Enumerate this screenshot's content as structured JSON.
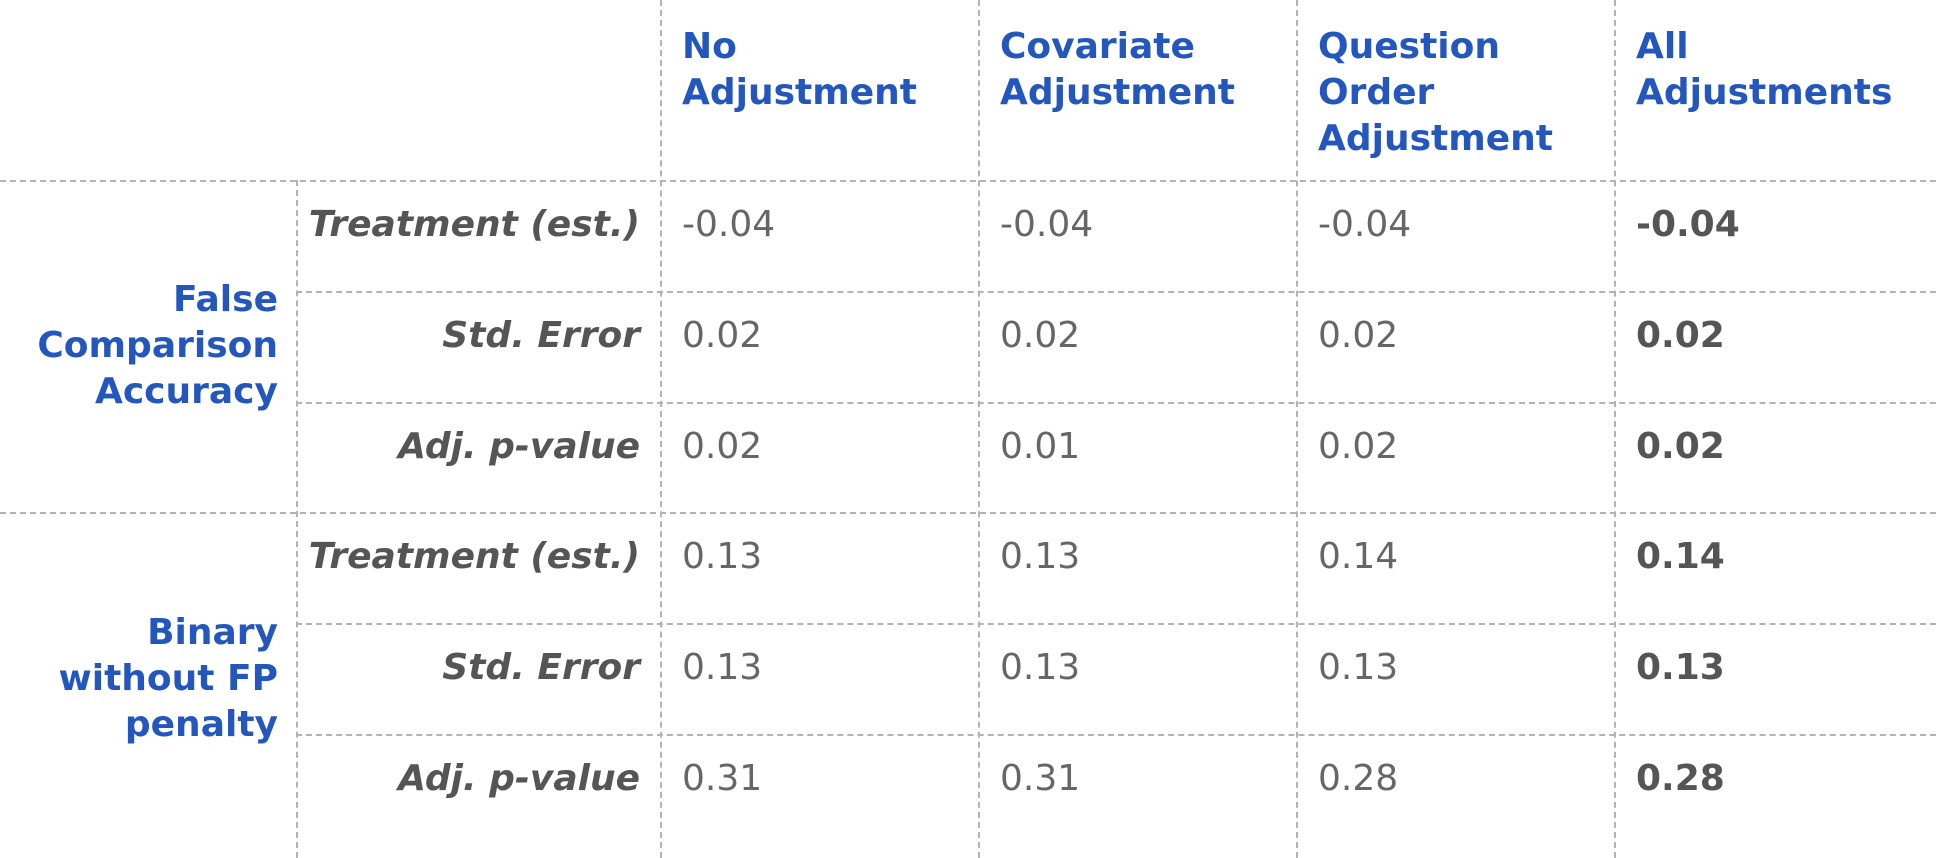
{
  "columns": [
    {
      "label": "No\nAdjustment"
    },
    {
      "label": "Covariate\nAdjustment"
    },
    {
      "label": "Question\nOrder\nAdjustment"
    },
    {
      "label": "All\nAdjustments"
    }
  ],
  "groups": [
    {
      "label": "False\nComparison\nAccuracy",
      "rows": [
        {
          "label": "Treatment (est.)",
          "values": [
            "-0.04",
            "-0.04",
            "-0.04",
            "-0.04"
          ]
        },
        {
          "label": "Std. Error",
          "values": [
            "0.02",
            "0.02",
            "0.02",
            "0.02"
          ]
        },
        {
          "label": "Adj. p-value",
          "values": [
            "0.02",
            "0.01",
            "0.02",
            "0.02"
          ]
        }
      ]
    },
    {
      "label": "Binary\nwithout FP\npenalty",
      "rows": [
        {
          "label": "Treatment (est.)",
          "values": [
            "0.13",
            "0.13",
            "0.14",
            "0.14"
          ]
        },
        {
          "label": "Std. Error",
          "values": [
            "0.13",
            "0.13",
            "0.13",
            "0.13"
          ]
        },
        {
          "label": "Adj. p-value",
          "values": [
            "0.31",
            "0.31",
            "0.28",
            "0.28"
          ]
        }
      ]
    }
  ],
  "colors": {
    "header": "#2457be",
    "label": "#555555",
    "value": "#666666",
    "grid": "#b3b3b3"
  }
}
